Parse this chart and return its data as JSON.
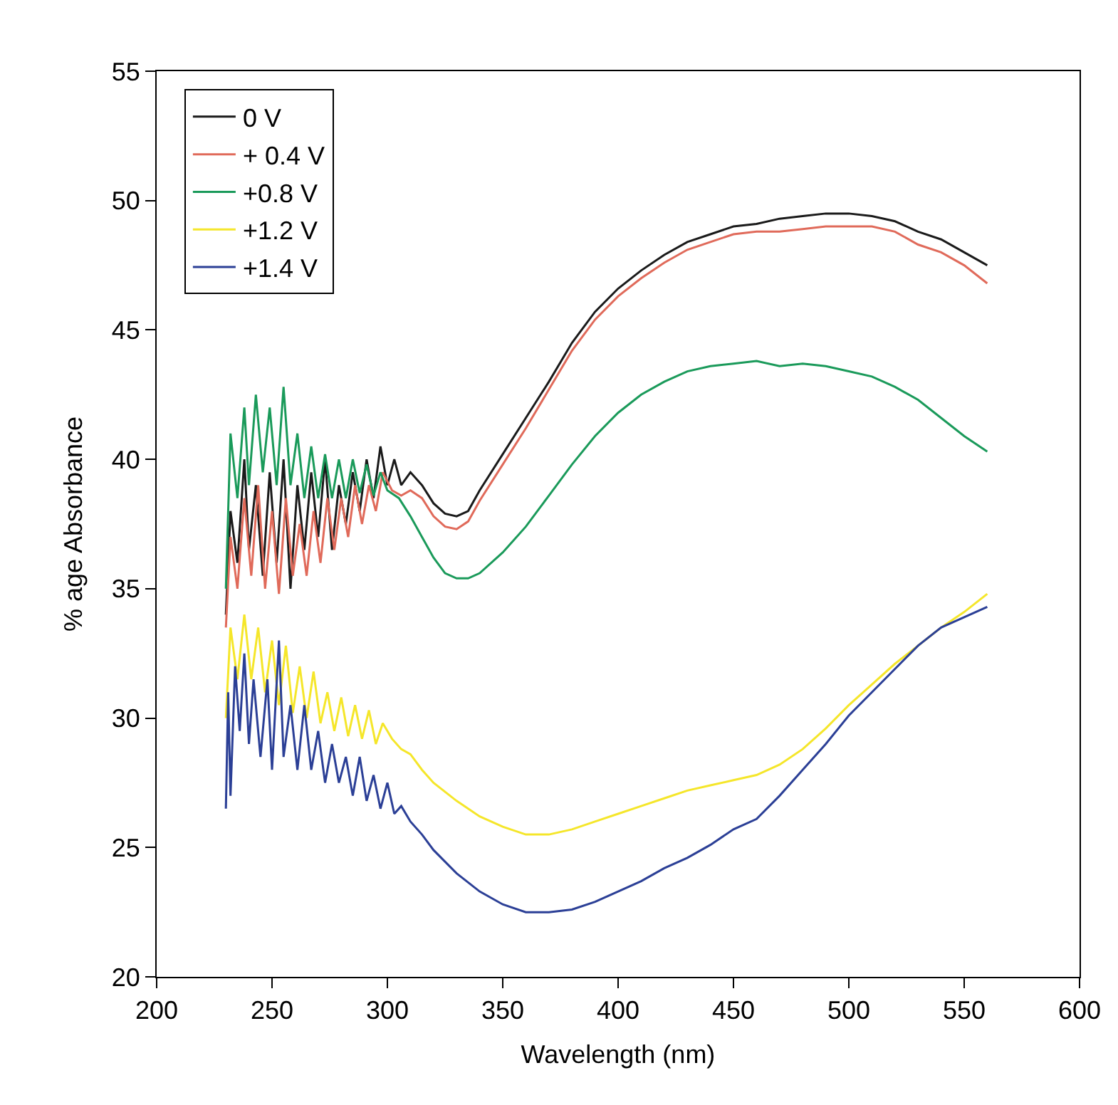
{
  "chart_data": {
    "type": "line",
    "xlabel": "Wavelength (nm)",
    "ylabel": "% age Absorbance",
    "xlim": [
      200,
      600
    ],
    "xticks": [
      200,
      250,
      300,
      350,
      400,
      450,
      500,
      550,
      600
    ],
    "ylim": [
      20,
      55
    ],
    "yticks": [
      20,
      25,
      30,
      35,
      40,
      45,
      50,
      55
    ],
    "legend": "top left",
    "marker": "none",
    "line_style": "solid",
    "series": [
      {
        "name": "0 V",
        "color": "#1a1a1a",
        "x": [
          230,
          232,
          235,
          238,
          240,
          243,
          246,
          249,
          252,
          255,
          258,
          261,
          264,
          267,
          270,
          273,
          276,
          279,
          282,
          285,
          288,
          291,
          294,
          297,
          300,
          303,
          306,
          310,
          315,
          320,
          325,
          330,
          335,
          340,
          350,
          360,
          370,
          380,
          390,
          400,
          410,
          420,
          430,
          440,
          450,
          460,
          470,
          480,
          490,
          500,
          510,
          520,
          530,
          540,
          550,
          560
        ],
        "values": [
          34,
          38,
          36,
          40,
          36.5,
          39,
          35.5,
          39.5,
          36,
          40,
          35,
          39,
          36.5,
          39.5,
          37,
          40,
          36.5,
          39,
          37.5,
          39.5,
          38,
          40,
          38.5,
          40.5,
          39,
          40,
          39,
          39.5,
          39,
          38.3,
          37.9,
          37.8,
          38,
          38.8,
          40.2,
          41.6,
          43,
          44.5,
          45.7,
          46.6,
          47.3,
          47.9,
          48.4,
          48.7,
          49,
          49.1,
          49.3,
          49.4,
          49.5,
          49.5,
          49.4,
          49.2,
          48.8,
          48.5,
          48,
          47.5
        ]
      },
      {
        "name": "+ 0.4 V",
        "color": "#e06a5a",
        "x": [
          230,
          232,
          235,
          238,
          241,
          244,
          247,
          250,
          253,
          256,
          259,
          262,
          265,
          268,
          271,
          274,
          277,
          280,
          283,
          286,
          289,
          292,
          295,
          298,
          302,
          306,
          310,
          315,
          320,
          325,
          330,
          335,
          340,
          350,
          360,
          370,
          380,
          390,
          400,
          410,
          420,
          430,
          440,
          450,
          460,
          470,
          480,
          490,
          500,
          510,
          520,
          530,
          540,
          550,
          560
        ],
        "values": [
          33.5,
          37,
          35,
          38.5,
          35.5,
          39,
          35,
          38,
          34.8,
          38.5,
          35.5,
          37.5,
          35.5,
          38,
          36,
          38.5,
          36.5,
          38.5,
          37,
          39,
          37.5,
          39,
          38,
          39.5,
          38.8,
          38.6,
          38.8,
          38.5,
          37.8,
          37.4,
          37.3,
          37.6,
          38.4,
          39.8,
          41.2,
          42.7,
          44.2,
          45.4,
          46.3,
          47,
          47.6,
          48.1,
          48.4,
          48.7,
          48.8,
          48.8,
          48.9,
          49,
          49,
          49,
          48.8,
          48.3,
          48,
          47.5,
          46.8
        ]
      },
      {
        "name": "+0.8 V",
        "color": "#1a9a5a",
        "x": [
          230,
          232,
          235,
          238,
          240,
          243,
          246,
          249,
          252,
          255,
          258,
          261,
          264,
          267,
          270,
          273,
          276,
          279,
          282,
          285,
          288,
          291,
          294,
          297,
          300,
          305,
          310,
          315,
          320,
          325,
          330,
          335,
          340,
          350,
          360,
          370,
          380,
          390,
          400,
          410,
          420,
          430,
          440,
          450,
          460,
          470,
          480,
          490,
          500,
          510,
          520,
          530,
          540,
          550,
          560
        ],
        "values": [
          35,
          41,
          38.5,
          42,
          39,
          42.5,
          39.5,
          42,
          39,
          42.8,
          39,
          41,
          38.5,
          40.5,
          38.5,
          40.2,
          38.5,
          40,
          38.5,
          40,
          38.7,
          39.8,
          38.6,
          39.5,
          38.8,
          38.5,
          37.8,
          37,
          36.2,
          35.6,
          35.4,
          35.4,
          35.6,
          36.4,
          37.4,
          38.6,
          39.8,
          40.9,
          41.8,
          42.5,
          43,
          43.4,
          43.6,
          43.7,
          43.8,
          43.6,
          43.7,
          43.6,
          43.4,
          43.2,
          42.8,
          42.3,
          41.6,
          40.9,
          40.3
        ]
      },
      {
        "name": "+1.2 V",
        "color": "#f5e62a",
        "x": [
          230,
          232,
          235,
          238,
          241,
          244,
          247,
          250,
          253,
          256,
          259,
          262,
          265,
          268,
          271,
          274,
          277,
          280,
          283,
          286,
          289,
          292,
          295,
          298,
          302,
          306,
          310,
          315,
          320,
          330,
          340,
          350,
          360,
          370,
          380,
          390,
          400,
          410,
          420,
          430,
          440,
          450,
          460,
          470,
          480,
          490,
          500,
          510,
          520,
          530,
          540,
          550,
          560
        ],
        "values": [
          30,
          33.5,
          31.5,
          34,
          31.5,
          33.5,
          31,
          33,
          30.5,
          32.8,
          30.2,
          32,
          30,
          31.8,
          29.8,
          31,
          29.5,
          30.8,
          29.3,
          30.5,
          29.2,
          30.3,
          29,
          29.8,
          29.2,
          28.8,
          28.6,
          28,
          27.5,
          26.8,
          26.2,
          25.8,
          25.5,
          25.5,
          25.7,
          26,
          26.3,
          26.6,
          26.9,
          27.2,
          27.4,
          27.6,
          27.8,
          28.2,
          28.8,
          29.6,
          30.5,
          31.3,
          32.1,
          32.8,
          33.5,
          34.1,
          34.8
        ]
      },
      {
        "name": "+1.4 V",
        "color": "#2b3f96",
        "x": [
          230,
          231,
          232,
          234,
          236,
          238,
          240,
          242,
          245,
          248,
          250,
          253,
          255,
          258,
          261,
          264,
          267,
          270,
          273,
          276,
          279,
          282,
          285,
          288,
          291,
          294,
          297,
          300,
          303,
          306,
          310,
          315,
          320,
          330,
          340,
          350,
          360,
          370,
          380,
          390,
          400,
          410,
          420,
          430,
          440,
          450,
          460,
          470,
          480,
          490,
          500,
          510,
          520,
          530,
          540,
          550,
          560
        ],
        "values": [
          26.5,
          31,
          27,
          32,
          29.5,
          32.5,
          29,
          31.5,
          28.5,
          31.5,
          28,
          33,
          28.5,
          30.5,
          28,
          30.5,
          28,
          29.5,
          27.5,
          29,
          27.5,
          28.5,
          27,
          28.5,
          26.8,
          27.8,
          26.5,
          27.5,
          26.3,
          26.6,
          26,
          25.5,
          24.9,
          24,
          23.3,
          22.8,
          22.5,
          22.5,
          22.6,
          22.9,
          23.3,
          23.7,
          24.2,
          24.6,
          25.1,
          25.7,
          26.1,
          27,
          28,
          29,
          30.1,
          31,
          31.9,
          32.8,
          33.5,
          33.9,
          34.3
        ]
      }
    ]
  }
}
